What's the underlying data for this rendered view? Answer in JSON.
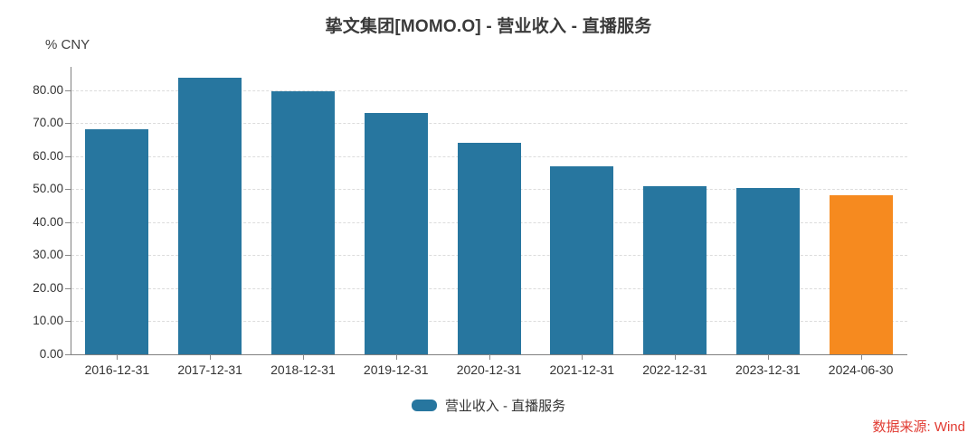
{
  "chart_data": {
    "type": "bar",
    "title": "挚文集团[MOMO.O] - 营业收入 - 直播服务",
    "unit_label": "% CNY",
    "categories": [
      "2016-12-31",
      "2017-12-31",
      "2018-12-31",
      "2019-12-31",
      "2020-12-31",
      "2021-12-31",
      "2022-12-31",
      "2023-12-31",
      "2024-06-30"
    ],
    "values": [
      68.0,
      83.6,
      79.6,
      73.0,
      64.0,
      57.0,
      50.8,
      50.4,
      48.1
    ],
    "ylim": [
      0,
      87
    ],
    "yticks": [
      0,
      10,
      20,
      30,
      40,
      50,
      60,
      70,
      80
    ],
    "ytick_labels": [
      "0.00",
      "10.00",
      "20.00",
      "30.00",
      "40.00",
      "50.00",
      "60.00",
      "70.00",
      "80.00"
    ],
    "xlabel": "",
    "ylabel": "% CNY",
    "grid": "horizontal-dashed",
    "legend_position": "bottom-center",
    "bar_color": "#27769f",
    "highlight_color": "#f68a1f",
    "highlight_index": 8,
    "legend_label": "营业收入 - 直播服务",
    "source_note": "数据来源: Wind"
  },
  "colors": {
    "title_text": "#3a3a3a",
    "axis_text": "#333333",
    "spine": "#808080",
    "gridline": "#dcdcdc",
    "source_text": "#e13b32",
    "background": "#ffffff"
  }
}
